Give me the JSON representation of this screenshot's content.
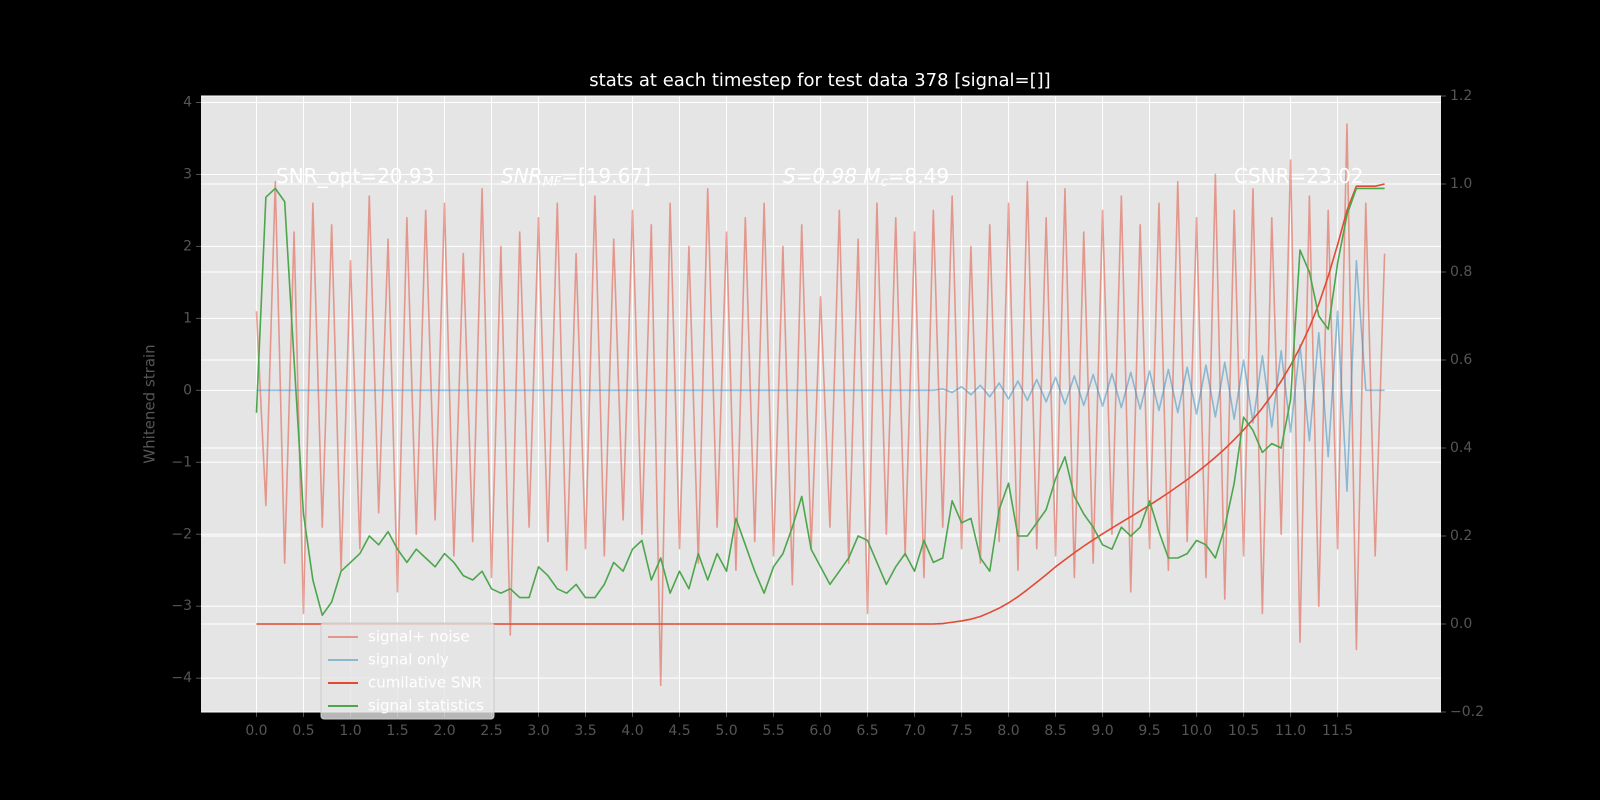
{
  "chart_data": {
    "type": "line",
    "title": "stats at each timestep for test data 378 [signal=[]]",
    "ylabel": "Whitened strain",
    "xlim": [
      -0.59,
      12.6
    ],
    "ylim": [
      -4.47,
      4.09
    ],
    "y2lim": [
      -0.2,
      1.2
    ],
    "xticks": [
      {
        "value": 0,
        "label": "0.0"
      },
      0.5,
      {
        "value": 1,
        "label": "1.0"
      },
      1.5,
      {
        "value": 2,
        "label": "2.0"
      },
      2.5,
      {
        "value": 3,
        "label": "3.0"
      },
      3.5,
      {
        "value": 4,
        "label": "4.0"
      },
      4.5,
      {
        "value": 5,
        "label": "5.0"
      },
      5.5,
      {
        "value": 6,
        "label": "6.0"
      },
      6.5,
      {
        "value": 7,
        "label": "7.0"
      },
      7.5,
      {
        "value": 8,
        "label": "8.0"
      },
      8.5,
      {
        "value": 9,
        "label": "9.0"
      },
      9.5,
      {
        "value": 10,
        "label": "10.0"
      },
      10.5,
      {
        "value": 11,
        "label": "11.0"
      },
      11.5
    ],
    "yticks": [
      {
        "value": -4,
        "label": "−4"
      },
      {
        "value": -3,
        "label": "−3"
      },
      {
        "value": -2,
        "label": "−2"
      },
      {
        "value": -1,
        "label": "−1"
      },
      0,
      1,
      2,
      3,
      4
    ],
    "y2ticks": [
      {
        "value": -0.2,
        "label": "−0.2"
      },
      {
        "value": 0,
        "label": "0.0"
      },
      0.2,
      0.4,
      0.6,
      0.8,
      {
        "value": 1,
        "label": "1.0"
      },
      1.2
    ],
    "grid": true,
    "legend": "lower left",
    "annotations": [
      {
        "text": "SNR_opt=20.93"
      },
      {
        "text": "SNR",
        "sub": "MF",
        "rest": "=[19.67]"
      },
      {
        "text": "S=0.98  M",
        "sub": "c",
        "rest": "=8.49"
      },
      {
        "text": "CSNR=23.02"
      }
    ],
    "x": [
      0,
      0.1,
      0.2,
      0.3,
      0.4,
      0.5,
      0.6,
      0.7,
      0.8,
      0.9,
      1,
      1.1,
      1.2,
      1.3,
      1.4,
      1.5,
      1.6,
      1.7,
      1.8,
      1.9,
      2,
      2.1,
      2.2,
      2.3,
      2.4,
      2.5,
      2.6,
      2.7,
      2.8,
      2.9,
      3,
      3.1,
      3.2,
      3.3,
      3.4,
      3.5,
      3.6,
      3.7,
      3.8,
      3.9,
      4,
      4.1,
      4.2,
      4.3,
      4.4,
      4.5,
      4.6,
      4.7,
      4.8,
      4.9,
      5,
      5.1,
      5.2,
      5.3,
      5.4,
      5.5,
      5.6,
      5.7,
      5.8,
      5.9,
      6,
      6.1,
      6.2,
      6.3,
      6.4,
      6.5,
      6.6,
      6.7,
      6.8,
      6.9,
      7,
      7.1,
      7.2,
      7.3,
      7.4,
      7.5,
      7.6,
      7.7,
      7.8,
      7.9,
      8,
      8.1,
      8.2,
      8.3,
      8.4,
      8.5,
      8.6,
      8.7,
      8.8,
      8.9,
      9,
      9.1,
      9.2,
      9.3,
      9.4,
      9.5,
      9.6,
      9.7,
      9.8,
      9.9,
      10,
      10.1,
      10.2,
      10.3,
      10.4,
      10.5,
      10.6,
      10.7,
      10.8,
      10.9,
      11,
      11.1,
      11.2,
      11.3,
      11.4,
      11.5,
      11.6,
      11.7,
      11.8,
      11.9,
      12
    ],
    "series": [
      {
        "name": "signal+ noise",
        "color": "#e24a33",
        "alpha": 0.5,
        "values": [
          1.1,
          -1.6,
          2.9,
          -2.4,
          2.2,
          -3.1,
          2.6,
          -1.9,
          2.3,
          -2.5,
          1.8,
          -2.2,
          2.7,
          -1.7,
          2.1,
          -2.8,
          2.4,
          -2.0,
          2.5,
          -1.8,
          2.6,
          -2.3,
          1.9,
          -2.1,
          2.8,
          -2.6,
          2.0,
          -3.4,
          2.2,
          -1.9,
          2.4,
          -2.1,
          2.6,
          -2.5,
          1.9,
          -2.2,
          2.7,
          -2.3,
          2.1,
          -1.8,
          2.5,
          -2.0,
          2.3,
          -4.1,
          2.6,
          -2.2,
          2.0,
          -2.4,
          2.8,
          -1.9,
          2.2,
          -2.5,
          2.4,
          -2.1,
          2.6,
          -2.3,
          2.0,
          -2.7,
          2.3,
          -2.2,
          1.3,
          -1.9,
          2.5,
          -2.4,
          2.1,
          -3.1,
          2.6,
          -2.0,
          2.4,
          -2.3,
          2.2,
          -2.6,
          2.5,
          -1.9,
          2.7,
          -2.2,
          2.0,
          -2.4,
          2.3,
          -2.1,
          2.6,
          -2.5,
          2.9,
          -2.2,
          2.4,
          -2.3,
          2.8,
          -2.6,
          2.2,
          -2.4,
          2.5,
          -2.0,
          2.7,
          -2.8,
          2.3,
          -2.2,
          2.6,
          -2.5,
          2.9,
          -2.1,
          2.4,
          -2.6,
          3.0,
          -2.9,
          2.5,
          -2.3,
          2.8,
          -3.1,
          2.4,
          -2.0,
          3.2,
          -3.5,
          2.7,
          -3.0,
          2.5,
          -2.2,
          3.7,
          -3.6,
          2.6,
          -2.3,
          1.9
        ]
      },
      {
        "name": "signal only",
        "color": "#348abd",
        "alpha": 0.5,
        "values": [
          0,
          0,
          0,
          0,
          0,
          0,
          0,
          0,
          0,
          0,
          0,
          0,
          0,
          0,
          0,
          0,
          0,
          0,
          0,
          0,
          0,
          0,
          0,
          0,
          0,
          0,
          0,
          0,
          0,
          0,
          0,
          0,
          0,
          0,
          0,
          0,
          0,
          0,
          0,
          0,
          0,
          0,
          0,
          0,
          0,
          0,
          0,
          0,
          0,
          0,
          0,
          0,
          0,
          0,
          0,
          0,
          0,
          0,
          0,
          0,
          0,
          0,
          0,
          0,
          0,
          0,
          0,
          0,
          0,
          0,
          0,
          0,
          0,
          0.02,
          -0.03,
          0.05,
          -0.06,
          0.07,
          -0.09,
          0.1,
          -0.12,
          0.13,
          -0.14,
          0.15,
          -0.16,
          0.18,
          -0.19,
          0.2,
          -0.21,
          0.22,
          -0.22,
          0.23,
          -0.24,
          0.25,
          -0.26,
          0.27,
          -0.28,
          0.29,
          -0.31,
          0.32,
          -0.33,
          0.35,
          -0.37,
          0.39,
          -0.4,
          0.42,
          -0.45,
          0.48,
          -0.51,
          0.55,
          -0.58,
          0.63,
          -0.7,
          0.8,
          -0.92,
          1.1,
          -1.4,
          1.8,
          0,
          0,
          0
        ]
      },
      {
        "name": "cumilative SNR",
        "color": "#e24a33",
        "alpha": 1,
        "axis": "y2",
        "values": [
          0,
          0,
          0,
          0,
          0,
          0,
          0,
          0,
          0,
          0,
          0,
          0,
          0,
          0,
          0,
          0,
          0,
          0,
          0,
          0,
          0,
          0,
          0,
          0,
          0,
          0,
          0,
          0,
          0,
          0,
          0,
          0,
          0,
          0,
          0,
          0,
          0,
          0,
          0,
          0,
          0,
          0,
          0,
          0,
          0,
          0,
          0,
          0,
          0,
          0,
          0,
          0,
          0,
          0,
          0,
          0,
          0,
          0,
          0,
          0,
          0,
          0,
          0,
          0,
          0,
          0,
          0,
          0,
          0,
          0,
          0,
          0,
          0,
          0.001,
          0.004,
          0.007,
          0.011,
          0.017,
          0.026,
          0.036,
          0.048,
          0.062,
          0.078,
          0.095,
          0.112,
          0.13,
          0.146,
          0.162,
          0.177,
          0.191,
          0.205,
          0.218,
          0.231,
          0.244,
          0.257,
          0.27,
          0.284,
          0.298,
          0.313,
          0.328,
          0.344,
          0.361,
          0.379,
          0.398,
          0.419,
          0.441,
          0.465,
          0.491,
          0.52,
          0.552,
          0.588,
          0.628,
          0.674,
          0.727,
          0.79,
          0.862,
          0.94,
          0.995,
          0.995,
          0.995,
          1.0
        ]
      },
      {
        "name": "signal statistics",
        "color": "#4ca64c",
        "alpha": 1,
        "axis": "y2",
        "values": [
          0.48,
          0.97,
          0.99,
          0.96,
          0.6,
          0.25,
          0.1,
          0.02,
          0.05,
          0.12,
          0.14,
          0.16,
          0.2,
          0.18,
          0.21,
          0.17,
          0.14,
          0.17,
          0.15,
          0.13,
          0.16,
          0.14,
          0.11,
          0.1,
          0.12,
          0.08,
          0.07,
          0.08,
          0.06,
          0.06,
          0.13,
          0.11,
          0.08,
          0.07,
          0.09,
          0.06,
          0.06,
          0.09,
          0.14,
          0.12,
          0.17,
          0.19,
          0.1,
          0.15,
          0.07,
          0.12,
          0.08,
          0.16,
          0.1,
          0.16,
          0.12,
          0.24,
          0.18,
          0.12,
          0.07,
          0.13,
          0.16,
          0.22,
          0.29,
          0.17,
          0.13,
          0.09,
          0.12,
          0.15,
          0.2,
          0.19,
          0.14,
          0.09,
          0.13,
          0.16,
          0.12,
          0.19,
          0.14,
          0.15,
          0.28,
          0.23,
          0.24,
          0.15,
          0.12,
          0.26,
          0.32,
          0.2,
          0.2,
          0.23,
          0.26,
          0.33,
          0.38,
          0.29,
          0.25,
          0.22,
          0.18,
          0.17,
          0.22,
          0.2,
          0.22,
          0.28,
          0.21,
          0.15,
          0.15,
          0.16,
          0.19,
          0.18,
          0.15,
          0.22,
          0.32,
          0.47,
          0.44,
          0.39,
          0.41,
          0.4,
          0.51,
          0.85,
          0.8,
          0.7,
          0.67,
          0.82,
          0.93,
          0.99,
          0.99,
          0.99,
          0.99
        ]
      }
    ]
  }
}
